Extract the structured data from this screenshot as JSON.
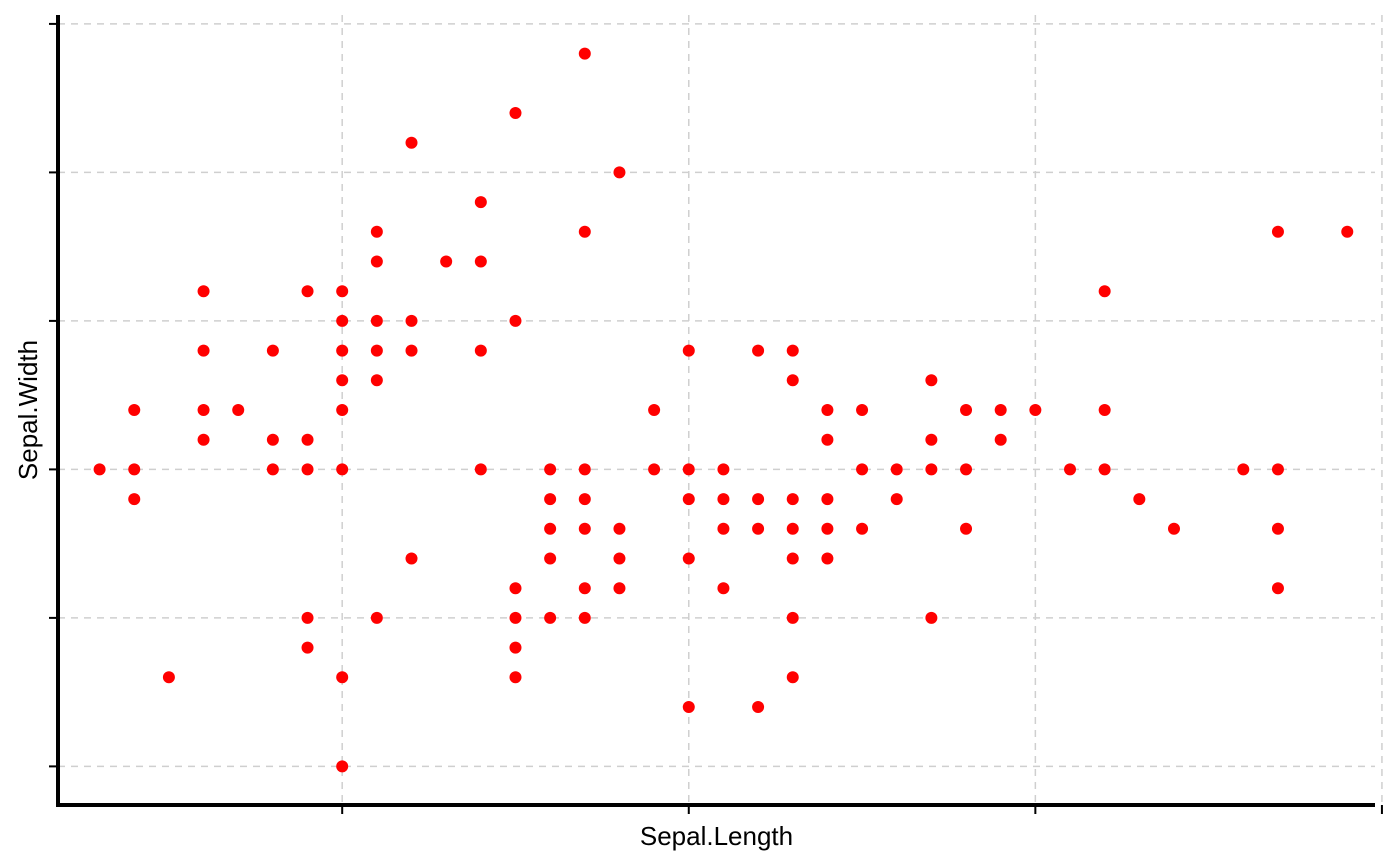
{
  "chart_data": {
    "type": "scatter",
    "xlabel": "Sepal.Length",
    "ylabel": "Sepal.Width",
    "xlim": [
      4.18,
      7.98
    ],
    "ylim": [
      1.87,
      4.53
    ],
    "x_ticks": [
      5,
      6,
      7,
      8
    ],
    "y_ticks": [
      2,
      2.5,
      3,
      3.5,
      4,
      4.5
    ],
    "grid": true,
    "point_color": "#ff0000",
    "points": [
      [
        4.3,
        3.0
      ],
      [
        4.4,
        2.9
      ],
      [
        4.4,
        3.0
      ],
      [
        4.4,
        3.2
      ],
      [
        4.5,
        2.3
      ],
      [
        4.6,
        3.1
      ],
      [
        4.6,
        3.2
      ],
      [
        4.6,
        3.4
      ],
      [
        4.6,
        3.6
      ],
      [
        4.7,
        3.2
      ],
      [
        4.8,
        3.0
      ],
      [
        4.8,
        3.1
      ],
      [
        4.8,
        3.4
      ],
      [
        4.9,
        2.4
      ],
      [
        4.9,
        2.5
      ],
      [
        4.9,
        3.0
      ],
      [
        4.9,
        3.1
      ],
      [
        4.9,
        3.6
      ],
      [
        5.0,
        2.0
      ],
      [
        5.0,
        2.3
      ],
      [
        5.0,
        3.0
      ],
      [
        5.0,
        3.2
      ],
      [
        5.0,
        3.3
      ],
      [
        5.0,
        3.4
      ],
      [
        5.0,
        3.5
      ],
      [
        5.0,
        3.6
      ],
      [
        5.1,
        2.5
      ],
      [
        5.1,
        3.3
      ],
      [
        5.1,
        3.4
      ],
      [
        5.1,
        3.5
      ],
      [
        5.1,
        3.7
      ],
      [
        5.1,
        3.8
      ],
      [
        5.2,
        2.7
      ],
      [
        5.2,
        3.4
      ],
      [
        5.2,
        3.5
      ],
      [
        5.2,
        4.1
      ],
      [
        5.3,
        3.7
      ],
      [
        5.4,
        3.0
      ],
      [
        5.4,
        3.4
      ],
      [
        5.4,
        3.7
      ],
      [
        5.4,
        3.9
      ],
      [
        5.5,
        2.3
      ],
      [
        5.5,
        2.4
      ],
      [
        5.5,
        2.5
      ],
      [
        5.5,
        2.6
      ],
      [
        5.5,
        3.5
      ],
      [
        5.5,
        4.2
      ],
      [
        5.6,
        2.5
      ],
      [
        5.6,
        2.7
      ],
      [
        5.6,
        2.8
      ],
      [
        5.6,
        2.9
      ],
      [
        5.6,
        3.0
      ],
      [
        5.7,
        2.5
      ],
      [
        5.7,
        2.6
      ],
      [
        5.7,
        2.8
      ],
      [
        5.7,
        2.9
      ],
      [
        5.7,
        3.0
      ],
      [
        5.7,
        3.8
      ],
      [
        5.7,
        4.4
      ],
      [
        5.8,
        2.6
      ],
      [
        5.8,
        2.7
      ],
      [
        5.8,
        2.8
      ],
      [
        5.8,
        4.0
      ],
      [
        5.9,
        3.0
      ],
      [
        5.9,
        3.2
      ],
      [
        6.0,
        2.2
      ],
      [
        6.0,
        2.7
      ],
      [
        6.0,
        2.9
      ],
      [
        6.0,
        3.0
      ],
      [
        6.0,
        3.4
      ],
      [
        6.1,
        2.6
      ],
      [
        6.1,
        2.8
      ],
      [
        6.1,
        2.9
      ],
      [
        6.1,
        3.0
      ],
      [
        6.2,
        2.2
      ],
      [
        6.2,
        2.8
      ],
      [
        6.2,
        2.9
      ],
      [
        6.2,
        3.4
      ],
      [
        6.3,
        2.3
      ],
      [
        6.3,
        2.5
      ],
      [
        6.3,
        2.7
      ],
      [
        6.3,
        2.8
      ],
      [
        6.3,
        2.9
      ],
      [
        6.3,
        3.3
      ],
      [
        6.3,
        3.4
      ],
      [
        6.4,
        2.7
      ],
      [
        6.4,
        2.8
      ],
      [
        6.4,
        2.9
      ],
      [
        6.4,
        3.1
      ],
      [
        6.4,
        3.2
      ],
      [
        6.5,
        2.8
      ],
      [
        6.5,
        3.0
      ],
      [
        6.5,
        3.2
      ],
      [
        6.6,
        2.9
      ],
      [
        6.6,
        3.0
      ],
      [
        6.7,
        2.5
      ],
      [
        6.7,
        3.0
      ],
      [
        6.7,
        3.1
      ],
      [
        6.7,
        3.3
      ],
      [
        6.8,
        2.8
      ],
      [
        6.8,
        3.0
      ],
      [
        6.8,
        3.2
      ],
      [
        6.9,
        3.1
      ],
      [
        6.9,
        3.2
      ],
      [
        7.0,
        3.2
      ],
      [
        7.1,
        3.0
      ],
      [
        7.2,
        3.0
      ],
      [
        7.2,
        3.2
      ],
      [
        7.2,
        3.6
      ],
      [
        7.3,
        2.9
      ],
      [
        7.4,
        2.8
      ],
      [
        7.6,
        3.0
      ],
      [
        7.7,
        2.6
      ],
      [
        7.7,
        2.8
      ],
      [
        7.7,
        3.0
      ],
      [
        7.7,
        3.8
      ],
      [
        7.9,
        3.8
      ]
    ]
  }
}
